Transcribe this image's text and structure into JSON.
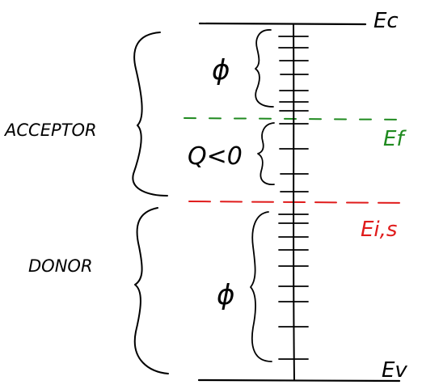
{
  "levels": {
    "conduction_band": {
      "label": "Ec"
    },
    "fermi_level": {
      "label": "Ef",
      "color": "#1f8a1f"
    },
    "intrinsic_surface_level": {
      "label": "Ei,s",
      "color": "#e01b1b"
    },
    "valence_band": {
      "label": "Ev"
    }
  },
  "regions": {
    "acceptor": {
      "label": "ACCEPTOR"
    },
    "donor": {
      "label": "DONOR"
    }
  },
  "brace_labels": {
    "upper_phi": "ϕ",
    "qlo": "Q<0",
    "lower_phi": "ϕ"
  },
  "colors": {
    "ink": "#000000",
    "fermi": "#1f8a1f",
    "intrinsic": "#e01b1b"
  }
}
